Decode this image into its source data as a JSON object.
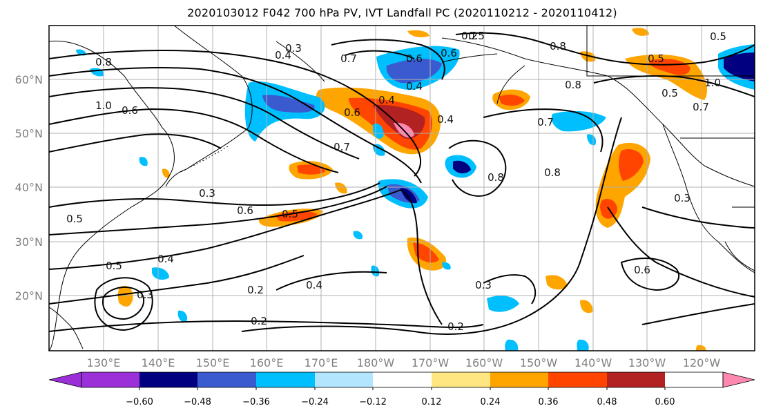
{
  "title": "2020103012 F042 700 hPa PV, IVT Landfall PC (2020110212 - 2020110412)",
  "axes": {
    "lat_labels": [
      "60°N",
      "50°N",
      "40°N",
      "30°N",
      "20°N"
    ],
    "lon_labels": [
      "130°E",
      "140°E",
      "150°E",
      "160°E",
      "170°E",
      "180°W",
      "170°W",
      "160°W",
      "150°W",
      "140°W",
      "130°W",
      "120°W"
    ]
  },
  "colorbar": {
    "colors": [
      "#9b30d9",
      "#000080",
      "#3a5bd0",
      "#00bfff",
      "#b3e5ff",
      "#ffffff",
      "#ffe680",
      "#ffa500",
      "#ff4500",
      "#b22222",
      "#ff88b0"
    ],
    "tick_labels": [
      "−0.60",
      "−0.48",
      "−0.36",
      "−0.24",
      "−0.12",
      "0.12",
      "0.24",
      "0.36",
      "0.48",
      "0.60"
    ]
  },
  "contour_labels": [
    "0.3",
    "0.4",
    "0.5",
    "0.6",
    "0.7",
    "0.8",
    "1.0",
    "0.2",
    "0.5",
    "0.6",
    "0.8",
    "0.7",
    "0.4",
    "0.3",
    "0.2",
    "0.6",
    "0.5",
    "0.4",
    "0.8",
    "0.7",
    "1.0",
    "0.5",
    "0.3",
    "0.4",
    "0.3",
    "0.2",
    "0.4",
    "0.5",
    "0.6",
    "0.5",
    "0.6",
    "0.4",
    "0.5",
    "0.8",
    "0.7",
    "0.8",
    "0.6",
    "0.3",
    "0.2"
  ]
}
